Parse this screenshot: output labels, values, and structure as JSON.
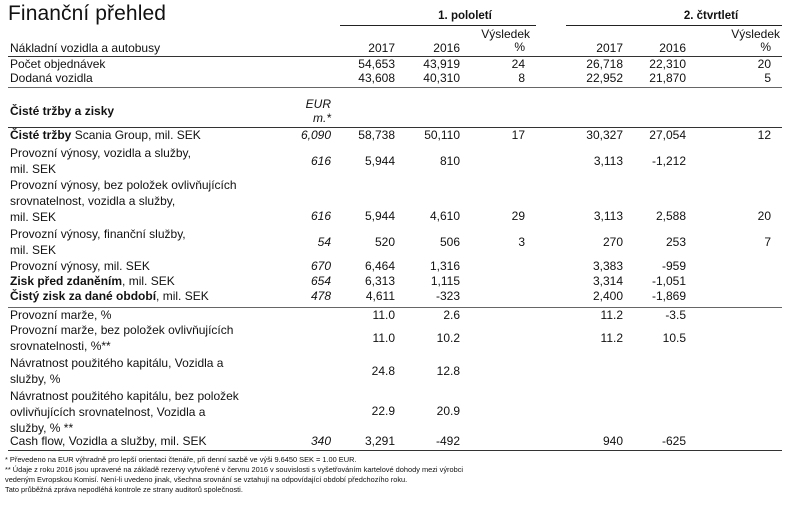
{
  "title": "Finanční přehled",
  "groups": {
    "h1": "1. pololetí",
    "q2": "2. čtvrtletí"
  },
  "columns": {
    "y2017": "2017",
    "y2016": "2016",
    "result_line1": "Výsledek",
    "result_line2": "%"
  },
  "section1": {
    "label": "Nákladní vozidla a autobusy",
    "rows": [
      {
        "label": "Počet objednávek",
        "h1_2017": "54,653",
        "h1_2016": "43,919",
        "h1_res": "24",
        "q2_2017": "26,718",
        "q2_2016": "22,310",
        "q2_res": "20"
      },
      {
        "label": "Dodaná vozidla",
        "h1_2017": "43,608",
        "h1_2016": "40,310",
        "h1_res": "8",
        "q2_2017": "22,952",
        "q2_2016": "21,870",
        "q2_res": "5"
      }
    ]
  },
  "section2": {
    "label": "Čisté tržby a zisky",
    "eur_line1": "EUR",
    "eur_line2": "m.*",
    "rows": [
      {
        "bold": "Čisté tržby",
        "rest": " Scania Group, mil. SEK",
        "eur": "6,090",
        "h1_2017": "58,738",
        "h1_2016": "50,110",
        "h1_res": "17",
        "q2_2017": "30,327",
        "q2_2016": "27,054",
        "q2_res": "12"
      },
      {
        "bold": "",
        "rest": "Provozní výnosy, vozidla a služby,",
        "rest2": "mil. SEK",
        "eur": "616",
        "h1_2017": "5,944",
        "h1_2016": "810",
        "h1_res": "",
        "q2_2017": "3,113",
        "q2_2016": "-1,212",
        "q2_res": ""
      },
      {
        "bold": "",
        "rest": "Provozní výnosy, bez položek ovlivňujících",
        "rest2": "srovnatelnost, vozidla a služby,",
        "rest3": "mil. SEK",
        "eur": "616",
        "h1_2017": "5,944",
        "h1_2016": "4,610",
        "h1_res": "29",
        "q2_2017": "3,113",
        "q2_2016": "2,588",
        "q2_res": "20"
      },
      {
        "bold": "",
        "rest": "Provozní výnosy, finanční služby,",
        "rest2": "mil. SEK",
        "eur": "54",
        "h1_2017": "520",
        "h1_2016": "506",
        "h1_res": "3",
        "q2_2017": "270",
        "q2_2016": "253",
        "q2_res": "7"
      },
      {
        "bold": "",
        "rest": "Provozní výnosy, mil. SEK",
        "eur": "670",
        "h1_2017": "6,464",
        "h1_2016": "1,316",
        "h1_res": "",
        "q2_2017": "3,383",
        "q2_2016": "-959",
        "q2_res": ""
      },
      {
        "bold": "Zisk před zdaněním",
        "rest": ", mil. SEK",
        "eur": "654",
        "h1_2017": "6,313",
        "h1_2016": "1,115",
        "h1_res": "",
        "q2_2017": "3,314",
        "q2_2016": "-1,051",
        "q2_res": ""
      },
      {
        "bold": "Čistý zisk za dané období",
        "rest": ", mil. SEK",
        "eur": "478",
        "h1_2017": "4,611",
        "h1_2016": "-323",
        "h1_res": "",
        "q2_2017": "2,400",
        "q2_2016": "-1,869",
        "q2_res": ""
      }
    ]
  },
  "section3": {
    "rows": [
      {
        "lines": [
          "Provozní marže, %"
        ],
        "eur": "",
        "h1_2017": "11.0",
        "h1_2016": "2.6",
        "q2_2017": "11.2",
        "q2_2016": "-3.5"
      },
      {
        "lines": [
          "Provozní marže, bez položek ovlivňujících",
          "srovnatelnosti, %**"
        ],
        "eur": "",
        "h1_2017": "11.0",
        "h1_2016": "10.2",
        "q2_2017": "11.2",
        "q2_2016": "10.5"
      },
      {
        "lines": [
          "Návratnost použitého kapitálu, Vozidla a",
          "služby, %"
        ],
        "eur": "",
        "h1_2017": "24.8",
        "h1_2016": "12.8",
        "q2_2017": "",
        "q2_2016": ""
      },
      {
        "lines": [
          "Návratnost použitého kapitálu, bez položek",
          "ovlivňujících srovnatelnost, Vozidla a",
          "služby, % **"
        ],
        "eur": "",
        "h1_2017": "22.9",
        "h1_2016": "20.9",
        "q2_2017": "",
        "q2_2016": ""
      },
      {
        "lines": [
          "Cash flow, Vozidla a služby, mil. SEK"
        ],
        "eur": "340",
        "h1_2017": "3,291",
        "h1_2016": "-492",
        "q2_2017": "940",
        "q2_2016": "-625"
      }
    ]
  },
  "footnotes": [
    "* Převedeno na EUR výhradně pro lepší orientaci čtenáře, při denní sazbě ve výši   9.6450 SEK = 1.00 EUR.",
    "** Údaje z roku 2016 jsou upravené na základě rezervy vytvořené v červnu 2016 v souvislosti s vyšetřováním kartelové dohody mezi výrobci",
    "vedeným Evropskou Komisí. Není-li uvedeno jinak, všechna srovnání se vztahují na odpovídající období předchozího roku.",
    "Tato průběžná zpráva nepodléhá kontrole ze strany auditorů  společnosti."
  ]
}
